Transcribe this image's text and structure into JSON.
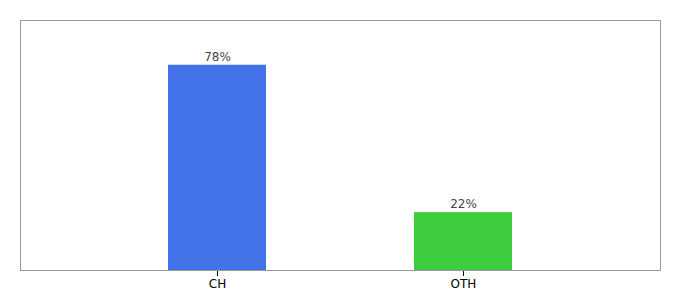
{
  "chart_data": {
    "type": "bar",
    "categories": [
      "CH",
      "OTH"
    ],
    "values": [
      78,
      22
    ],
    "value_labels": [
      "78%",
      "22%"
    ],
    "colors": [
      "#4472e8",
      "#3dcc3d"
    ],
    "ylim": [
      0,
      95
    ],
    "data_labels": true,
    "tick_labels": "x",
    "grid": false
  }
}
